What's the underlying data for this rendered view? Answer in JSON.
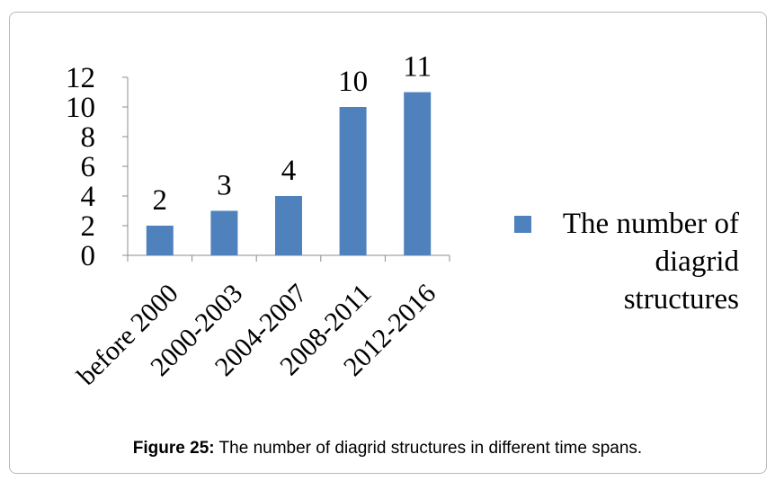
{
  "chart_data": {
    "type": "bar",
    "categories": [
      "before 2000",
      "2000-2003",
      "2004-2007",
      "2008-2011",
      "2012-2016"
    ],
    "series": [
      {
        "name": "The number of diagrid structures",
        "values": [
          2,
          3,
          4,
          10,
          11
        ],
        "color": "#4f81bd"
      }
    ],
    "data_labels": [
      "2",
      "3",
      "4",
      "10",
      "11"
    ],
    "y_ticks": [
      0,
      2,
      4,
      6,
      8,
      10,
      12
    ],
    "ylim": [
      0,
      12
    ],
    "grid": false,
    "legend_position": "right",
    "xlabel": "",
    "ylabel": ""
  },
  "caption": {
    "label": "Figure 25:",
    "text": " The number of diagrid structures in different time spans."
  }
}
